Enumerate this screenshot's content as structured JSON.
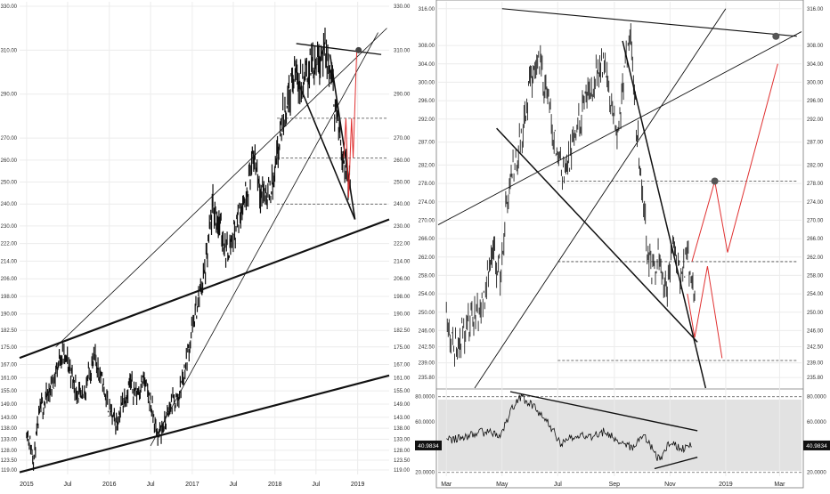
{
  "chart_data": [
    {
      "type": "line",
      "title": "",
      "xlabel": "",
      "ylabel": "",
      "xlim": [
        "2014-12-01",
        "2019-05-20"
      ],
      "ylim": [
        117,
        332
      ],
      "grid": true,
      "x_ticks": [
        "2015",
        "Jul",
        "2016",
        "Jul",
        "2017",
        "Jul",
        "2018",
        "Jul",
        "2019"
      ],
      "y_ticks": [
        330,
        310,
        290,
        270,
        260,
        250,
        240,
        230,
        222,
        214,
        206,
        198,
        190,
        182.5,
        175,
        167,
        161,
        155,
        149,
        143,
        138,
        133,
        128,
        123.5,
        119
      ],
      "series": [
        {
          "x": [
            "2015-01-01",
            "2015-02-01",
            "2015-03-01",
            "2015-04-01",
            "2015-05-01",
            "2015-06-01",
            "2015-07-01",
            "2015-08-01",
            "2015-09-01",
            "2015-10-01",
            "2015-11-01",
            "2015-12-01",
            "2016-01-01",
            "2016-02-01",
            "2016-03-01",
            "2016-04-01",
            "2016-05-01",
            "2016-06-01",
            "2016-07-01",
            "2016-08-01",
            "2016-09-01",
            "2016-10-01",
            "2016-11-01",
            "2016-12-01",
            "2017-01-01",
            "2017-02-01",
            "2017-03-01",
            "2017-04-01",
            "2017-05-01",
            "2017-06-01",
            "2017-07-01",
            "2017-08-01",
            "2017-09-01",
            "2017-10-01",
            "2017-11-01",
            "2017-12-01",
            "2018-01-01",
            "2018-02-01",
            "2018-03-01",
            "2018-04-01",
            "2018-05-01",
            "2018-06-01",
            "2018-07-01",
            "2018-08-01",
            "2018-09-01",
            "2018-10-01",
            "2018-11-01",
            "2018-12-01"
          ],
          "values": [
            138,
            124,
            146,
            152,
            160,
            172,
            168,
            158,
            150,
            162,
            170,
            159,
            146,
            140,
            150,
            158,
            154,
            160,
            150,
            134,
            140,
            149,
            152,
            166,
            183,
            198,
            211,
            238,
            231,
            218,
            226,
            237,
            248,
            262,
            246,
            244,
            252,
            276,
            290,
            300,
            294,
            302,
            306,
            310,
            300,
            280,
            260,
            250
          ]
        }
      ],
      "reference_lines": [
        279,
        261,
        240
      ]
    },
    {
      "type": "line",
      "title": "",
      "xlabel": "",
      "ylabel": "",
      "xlim": [
        "2018-02-20",
        "2019-03-25"
      ],
      "ylim": [
        233.5,
        317.5
      ],
      "grid": true,
      "x_ticks": [
        "Mar",
        "May",
        "Jul",
        "Sep",
        "Nov",
        "2019",
        "Mar"
      ],
      "y_ticks": [
        316,
        308,
        304,
        300,
        296,
        292,
        287,
        282,
        278,
        274,
        270,
        266,
        262,
        258,
        254,
        250,
        246,
        242.5,
        239,
        235.8
      ],
      "series": [
        {
          "x": [
            "2018-03-01",
            "2018-03-10",
            "2018-03-20",
            "2018-04-01",
            "2018-04-10",
            "2018-04-20",
            "2018-04-30",
            "2018-05-05",
            "2018-05-15",
            "2018-05-25",
            "2018-06-01",
            "2018-06-10",
            "2018-06-20",
            "2018-06-30",
            "2018-07-10",
            "2018-07-20",
            "2018-07-30",
            "2018-08-10",
            "2018-08-20",
            "2018-08-30",
            "2018-09-05",
            "2018-09-15",
            "2018-09-20",
            "2018-09-25",
            "2018-10-01",
            "2018-10-08",
            "2018-10-12",
            "2018-10-20",
            "2018-10-28",
            "2018-11-05",
            "2018-11-12",
            "2018-11-20",
            "2018-11-28"
          ],
          "values": [
            248,
            242,
            246,
            249,
            252,
            264,
            258,
            272,
            282,
            290,
            300,
            306,
            296,
            285,
            280,
            288,
            295,
            300,
            305,
            292,
            290,
            306,
            308,
            292,
            278,
            262,
            259,
            263,
            254,
            266,
            257,
            262,
            252
          ]
        }
      ],
      "reference_lines": [
        278.5,
        261,
        239.5
      ],
      "markers": [
        {
          "x": "2018-12-20",
          "y": 278.5
        },
        {
          "x": "2019-02-25",
          "y": 310
        }
      ]
    },
    {
      "type": "line",
      "title": "",
      "xlabel": "",
      "ylabel": "",
      "ylim": [
        17,
        84
      ],
      "y_ticks": [
        80,
        60,
        40,
        20
      ],
      "y_tick_labels": [
        "80.0000",
        "60.0000",
        "40.0000",
        "20.0000"
      ],
      "current_value": "40.9834",
      "series": [
        {
          "x": [
            "2018-03-01",
            "2018-03-20",
            "2018-04-10",
            "2018-04-30",
            "2018-05-10",
            "2018-05-22",
            "2018-06-05",
            "2018-06-20",
            "2018-07-05",
            "2018-07-20",
            "2018-08-05",
            "2018-08-20",
            "2018-09-05",
            "2018-09-20",
            "2018-10-05",
            "2018-10-20",
            "2018-11-01",
            "2018-11-12",
            "2018-11-25"
          ],
          "values": [
            45,
            48,
            52,
            50,
            68,
            80,
            72,
            60,
            42,
            50,
            48,
            52,
            46,
            40,
            48,
            30,
            44,
            38,
            41
          ]
        }
      ],
      "reference_lines": [
        80,
        20
      ]
    }
  ]
}
